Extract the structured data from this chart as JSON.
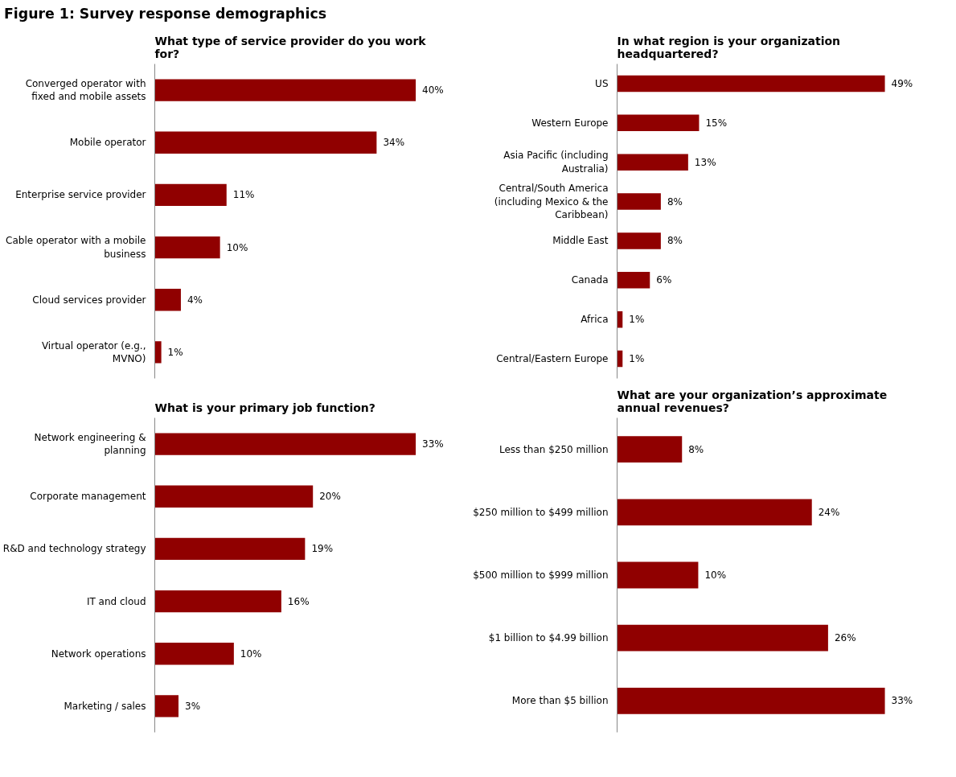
{
  "chart_data": [
    {
      "type": "bar",
      "orientation": "horizontal",
      "title": "What type of service provider do you work for?",
      "annotations": [
        "Figure 1: Survey response demographics"
      ],
      "categories": [
        "Converged operator with fixed and mobile assets",
        "Mobile operator",
        "Enterprise service provider",
        "Cable operator with a mobile business",
        "Cloud services provider",
        "Virtual operator (e.g., MVNO)"
      ],
      "values": [
        40,
        34,
        11,
        10,
        4,
        1
      ],
      "value_labels": [
        "40%",
        "34%",
        "11%",
        "10%",
        "4%",
        "1%"
      ],
      "color": "#900000",
      "grid": false,
      "tick_labels": "y"
    },
    {
      "type": "bar",
      "orientation": "horizontal",
      "title": "In what region is your organization headquartered?",
      "categories": [
        "US",
        "Western Europe",
        "Asia Pacific (including Australia)",
        "Central/South America (including Mexico & the Caribbean)",
        "Middle East",
        "Canada",
        "Africa",
        "Central/Eastern Europe"
      ],
      "values": [
        49,
        15,
        13,
        8,
        8,
        6,
        1,
        1
      ],
      "value_labels": [
        "49%",
        "15%",
        "13%",
        "8%",
        "8%",
        "6%",
        "1%",
        "1%"
      ],
      "color": "#900000",
      "grid": false,
      "tick_labels": "y"
    },
    {
      "type": "bar",
      "orientation": "horizontal",
      "title": "What is your primary job function?",
      "categories": [
        "Network engineering & planning",
        "Corporate management",
        "R&D and technology strategy",
        "IT and cloud",
        "Network operations",
        "Marketing / sales"
      ],
      "values": [
        33,
        20,
        19,
        16,
        10,
        3
      ],
      "value_labels": [
        "33%",
        "20%",
        "19%",
        "16%",
        "10%",
        "3%"
      ],
      "color": "#900000",
      "grid": false,
      "tick_labels": "y"
    },
    {
      "type": "bar",
      "orientation": "horizontal",
      "title": "What are your organization’s approximate annual revenues?",
      "categories": [
        "Less than $250 million",
        "$250 million to $499 million",
        "$500 million to $999 million",
        "$1 billion to $4.99 billion",
        "More than $5 billion"
      ],
      "values": [
        8,
        24,
        10,
        26,
        33
      ],
      "value_labels": [
        "8%",
        "24%",
        "10%",
        "26%",
        "33%"
      ],
      "color": "#900000",
      "grid": false,
      "tick_labels": "y"
    }
  ]
}
